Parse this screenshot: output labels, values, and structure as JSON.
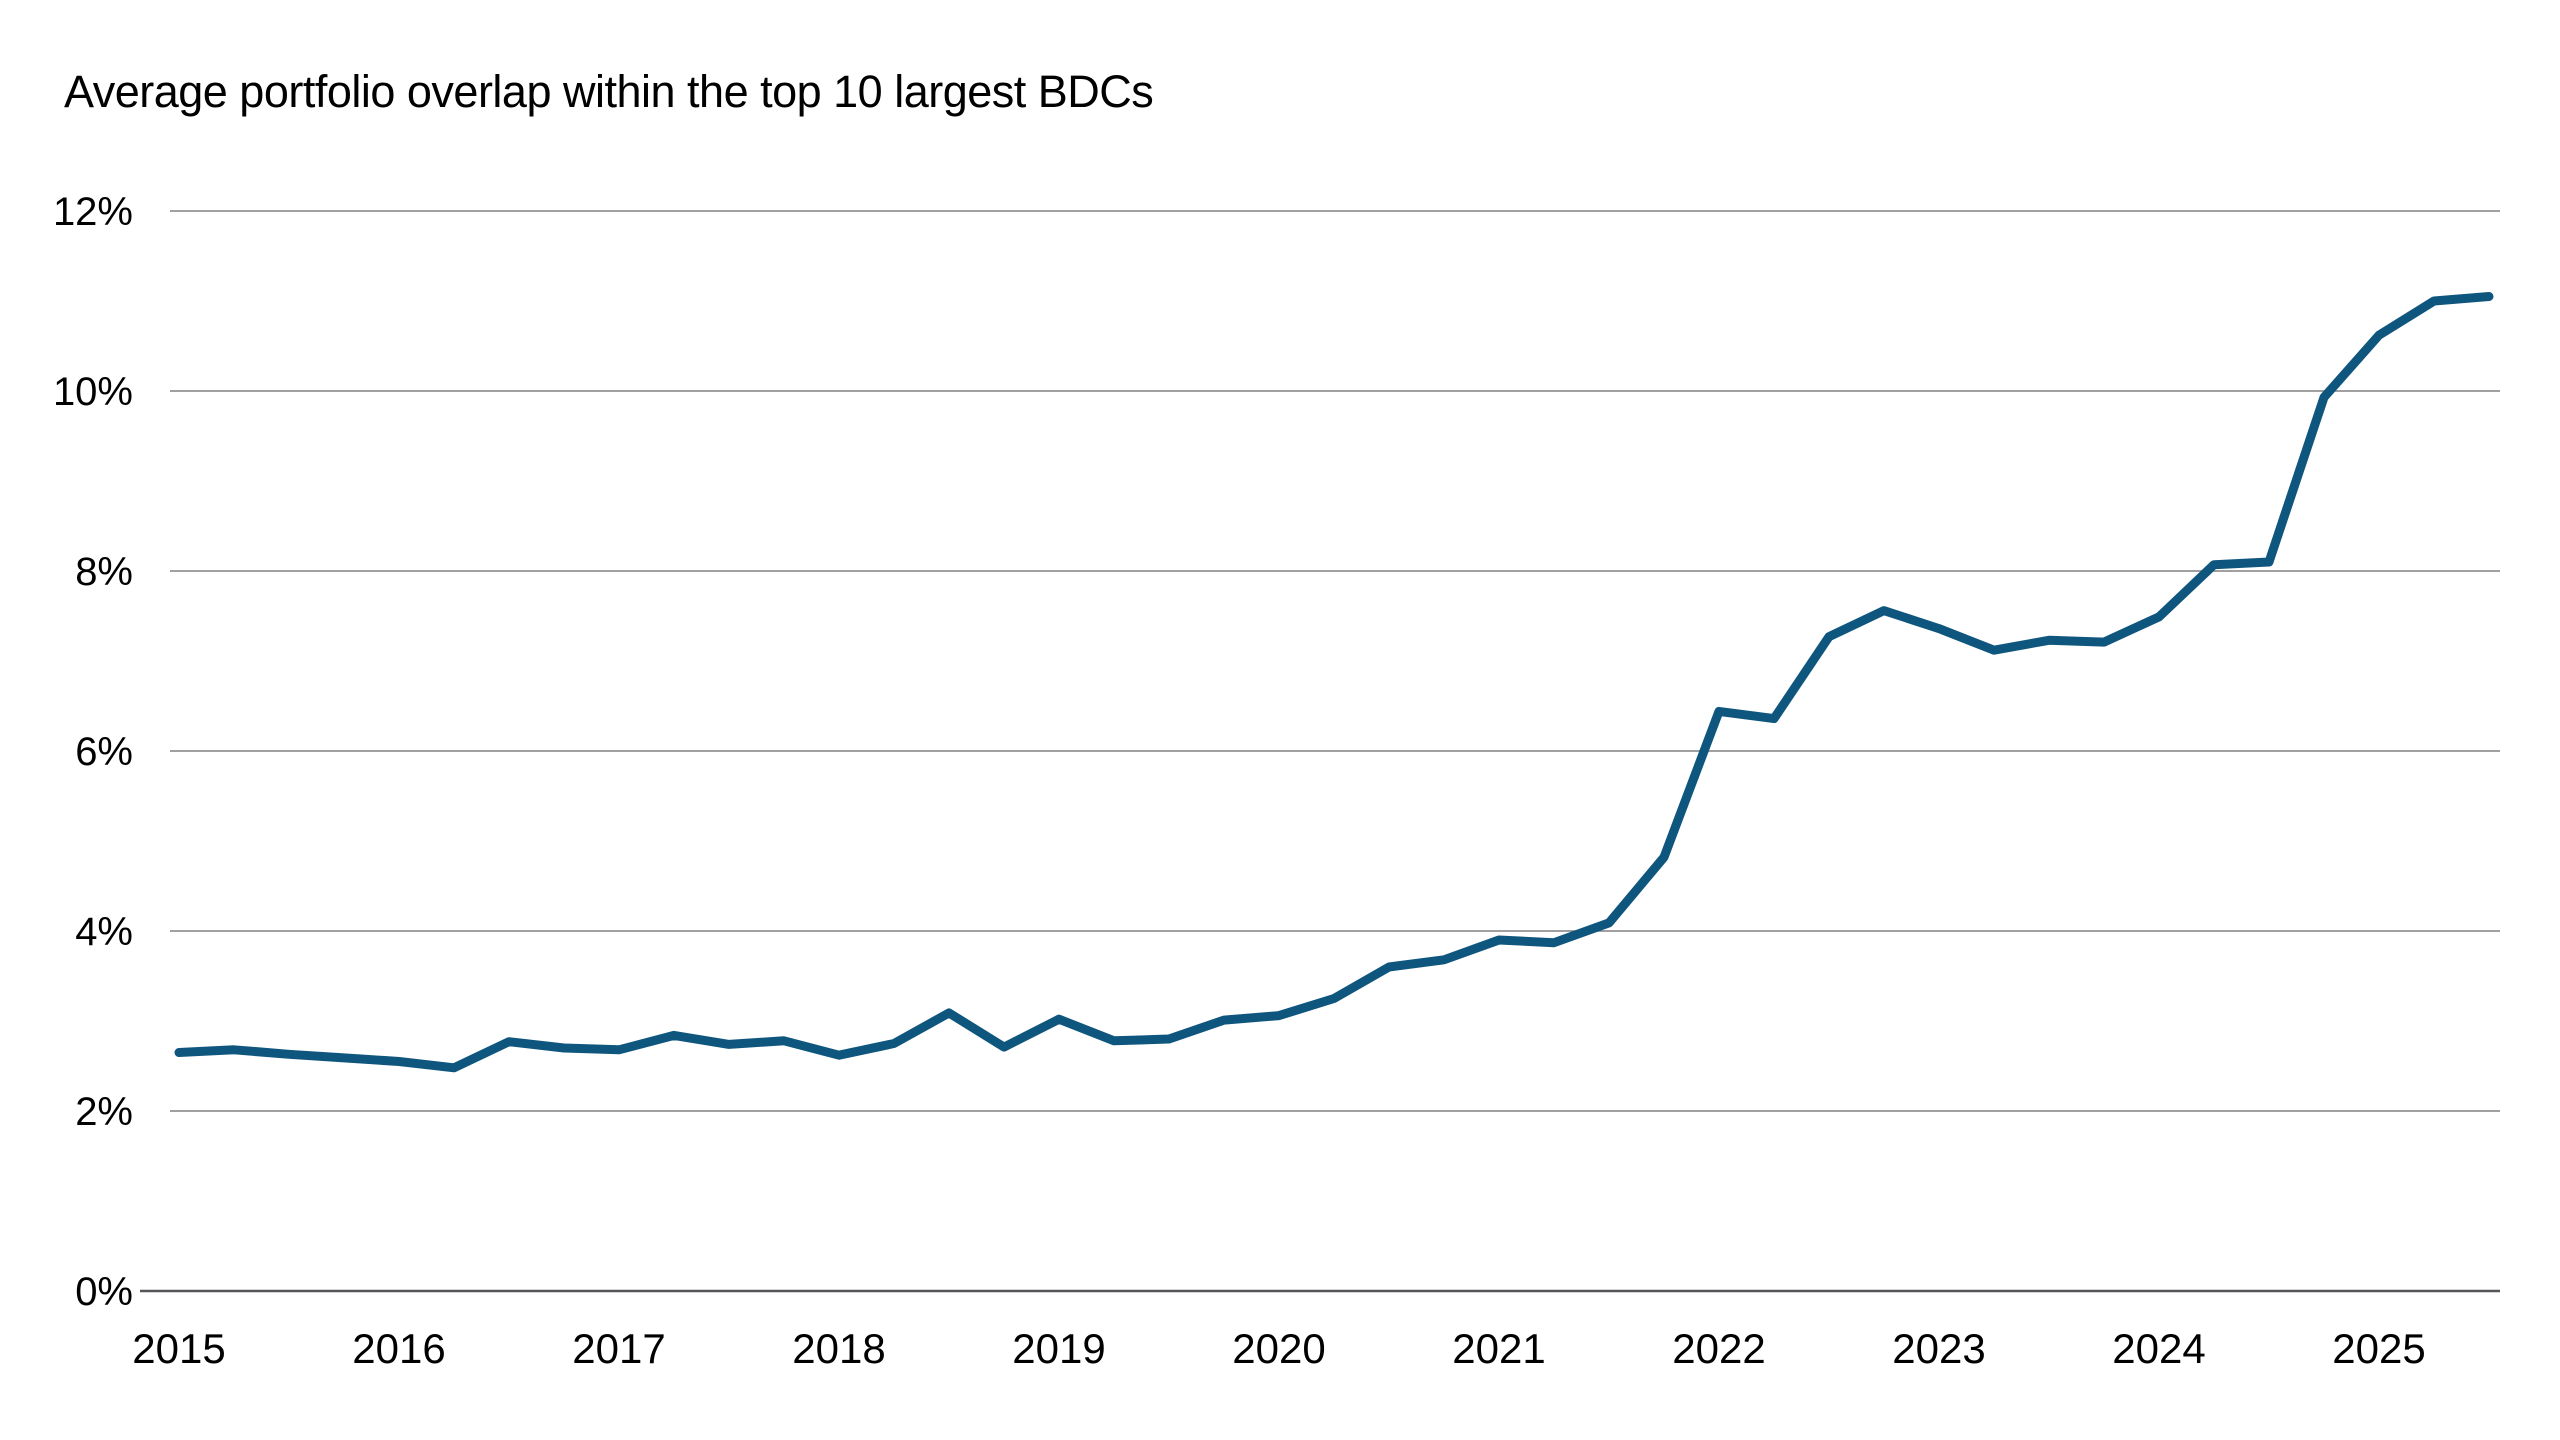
{
  "chart_data": {
    "type": "line",
    "title": "Average portfolio overlap within the top 10 largest BDCs",
    "series": [
      {
        "name": "Average portfolio overlap",
        "values": [
          2.65,
          2.68,
          2.63,
          2.59,
          2.55,
          2.48,
          2.77,
          2.7,
          2.68,
          2.84,
          2.74,
          2.78,
          2.62,
          2.75,
          3.09,
          2.71,
          3.02,
          2.78,
          2.8,
          3.01,
          3.06,
          3.25,
          3.6,
          3.68,
          3.9,
          3.87,
          4.09,
          4.82,
          6.44,
          6.36,
          7.27,
          7.56,
          7.36,
          7.12,
          7.23,
          7.21,
          7.49,
          8.07,
          8.1,
          9.93,
          10.62,
          11.0,
          11.05
        ]
      }
    ],
    "categories": [
      "2015 Q1",
      "2015 Q2",
      "2015 Q3",
      "2015 Q4",
      "2016 Q1",
      "2016 Q2",
      "2016 Q3",
      "2016 Q4",
      "2017 Q1",
      "2017 Q2",
      "2017 Q3",
      "2017 Q4",
      "2018 Q1",
      "2018 Q2",
      "2018 Q3",
      "2018 Q4",
      "2019 Q1",
      "2019 Q2",
      "2019 Q3",
      "2019 Q4",
      "2020 Q1",
      "2020 Q2",
      "2020 Q3",
      "2020 Q4",
      "2021 Q1",
      "2021 Q2",
      "2021 Q3",
      "2021 Q4",
      "2022 Q1",
      "2022 Q2",
      "2022 Q3",
      "2022 Q4",
      "2023 Q1",
      "2023 Q2",
      "2023 Q3",
      "2023 Q4",
      "2024 Q1",
      "2024 Q2",
      "2024 Q3",
      "2024 Q4",
      "2025 Q1",
      "2025 Q2",
      "2025 Q3"
    ],
    "x_numeric_start": 2015,
    "x_numeric_step": 0.25,
    "xlim": [
      2015,
      2025.5
    ],
    "ylim": [
      0,
      12
    ],
    "x_tick_labels": [
      "2015",
      "2016",
      "2017",
      "2018",
      "2019",
      "2020",
      "2021",
      "2022",
      "2023",
      "2024",
      "2025"
    ],
    "x_tick_values": [
      2015,
      2016,
      2017,
      2018,
      2019,
      2020,
      2021,
      2022,
      2023,
      2024,
      2025
    ],
    "y_tick_labels": [
      "0%",
      "2%",
      "4%",
      "6%",
      "8%",
      "10%",
      "12%"
    ],
    "y_tick_values": [
      0,
      2,
      4,
      6,
      8,
      10,
      12
    ],
    "grid": "horizontal",
    "legend": "none",
    "colors": {
      "line": "#0F567E",
      "gridline": "#808184",
      "baseline": "#55565A",
      "text": "#000000"
    }
  }
}
